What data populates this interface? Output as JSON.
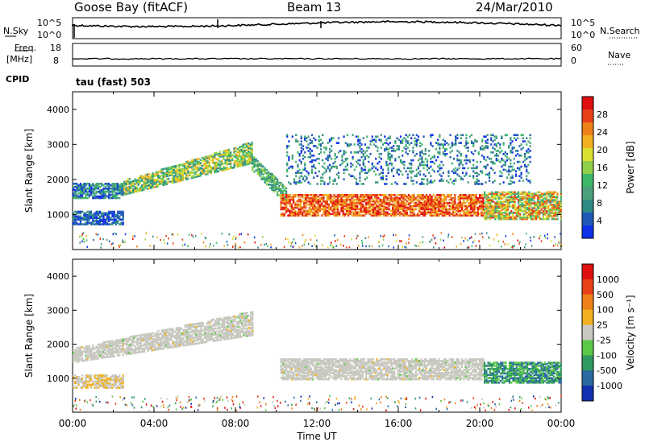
{
  "header": {
    "station": "Goose Bay (fitACF)",
    "beam": "Beam 13",
    "date": "24/Mar/2010"
  },
  "top_panels": {
    "nsky_label": "N.Sky",
    "nsearch_label": "N.Search",
    "freq_label_line1": "Freq.",
    "freq_label_line2": "[MHz]",
    "nave_label": "Nave",
    "cpid_label": "CPID",
    "mode_text": "tau (fast) 503",
    "noise_left_ticks": [
      "10^5",
      "10^0"
    ],
    "noise_right_ticks": [
      "10^5",
      "10^0"
    ],
    "freq_ticks": [
      "18",
      "8"
    ],
    "nave_ticks": [
      "60",
      "0"
    ]
  },
  "chart_data": [
    {
      "type": "heatmap",
      "name": "power",
      "ylabel": "Slant Range [km]",
      "xlabel": "",
      "ylim": [
        0,
        4500
      ],
      "yticks": [
        "1000",
        "2000",
        "3000",
        "4000"
      ],
      "xlim_hours": [
        0,
        24
      ],
      "colorbar": {
        "label": "Power [dB]",
        "ticks": [
          "28",
          "24",
          "20",
          "16",
          "12",
          "8",
          "4"
        ],
        "colors": [
          "#1030e8",
          "#1e58b8",
          "#2f8a86",
          "#4aa07a",
          "#3db86a",
          "#8ed04a",
          "#d8e030",
          "#f0b020",
          "#f08018",
          "#e84018",
          "#e01010"
        ]
      },
      "regions": [
        {
          "label": "early band",
          "x": [
            0.0,
            2.5
          ],
          "y": [
            750,
            1150
          ],
          "level": "blue"
        },
        {
          "label": "early upper",
          "x": [
            0.0,
            2.5
          ],
          "y": [
            1500,
            1950
          ],
          "level": "blue-green"
        },
        {
          "label": "morning rise",
          "x": [
            2.5,
            8.8
          ],
          "y": [
            1800,
            3000
          ],
          "level": "green-yellow"
        },
        {
          "label": "dip",
          "x": [
            8.8,
            10.5
          ],
          "y": [
            1300,
            2700
          ],
          "level": "green"
        },
        {
          "label": "strong band",
          "x": [
            10.2,
            20.2
          ],
          "y": [
            1000,
            1600
          ],
          "level": "red-orange"
        },
        {
          "label": "upper scatter",
          "x": [
            10.5,
            22.5
          ],
          "y": [
            1900,
            3300
          ],
          "level": "blue-green"
        },
        {
          "label": "late band",
          "x": [
            20.2,
            24.0
          ],
          "y": [
            900,
            1700
          ],
          "level": "orange-green"
        }
      ]
    },
    {
      "type": "heatmap",
      "name": "velocity",
      "ylabel": "Slant Range [km]",
      "xlabel": "Time UT",
      "ylim": [
        0,
        4500
      ],
      "yticks": [
        "1000",
        "2000",
        "3000",
        "4000"
      ],
      "xticks": [
        "00:00",
        "04:00",
        "08:00",
        "12:00",
        "16:00",
        "20:00",
        "00:00"
      ],
      "colorbar": {
        "label": "Velocity [m s⁻¹]",
        "ticks": [
          "1000",
          "500",
          "100",
          "25",
          "-25",
          "-100",
          "-500",
          "-1000"
        ],
        "colors": [
          "#1030b0",
          "#2a6aa0",
          "#2f9a60",
          "#5cc848",
          "#c8c8c0",
          "#f0b020",
          "#f08018",
          "#e84018",
          "#e01010"
        ]
      },
      "regions": [
        {
          "label": "early band",
          "x": [
            0.0,
            2.5
          ],
          "y": [
            750,
            1150
          ],
          "level": "grey-yellow"
        },
        {
          "label": "morning rise",
          "x": [
            0.0,
            8.8
          ],
          "y": [
            1500,
            3000
          ],
          "level": "grey"
        },
        {
          "label": "main band",
          "x": [
            10.2,
            20.2
          ],
          "y": [
            1000,
            1600
          ],
          "level": "grey"
        },
        {
          "label": "late band",
          "x": [
            20.2,
            24.0
          ],
          "y": [
            900,
            1500
          ],
          "level": "green-blue"
        }
      ]
    }
  ]
}
